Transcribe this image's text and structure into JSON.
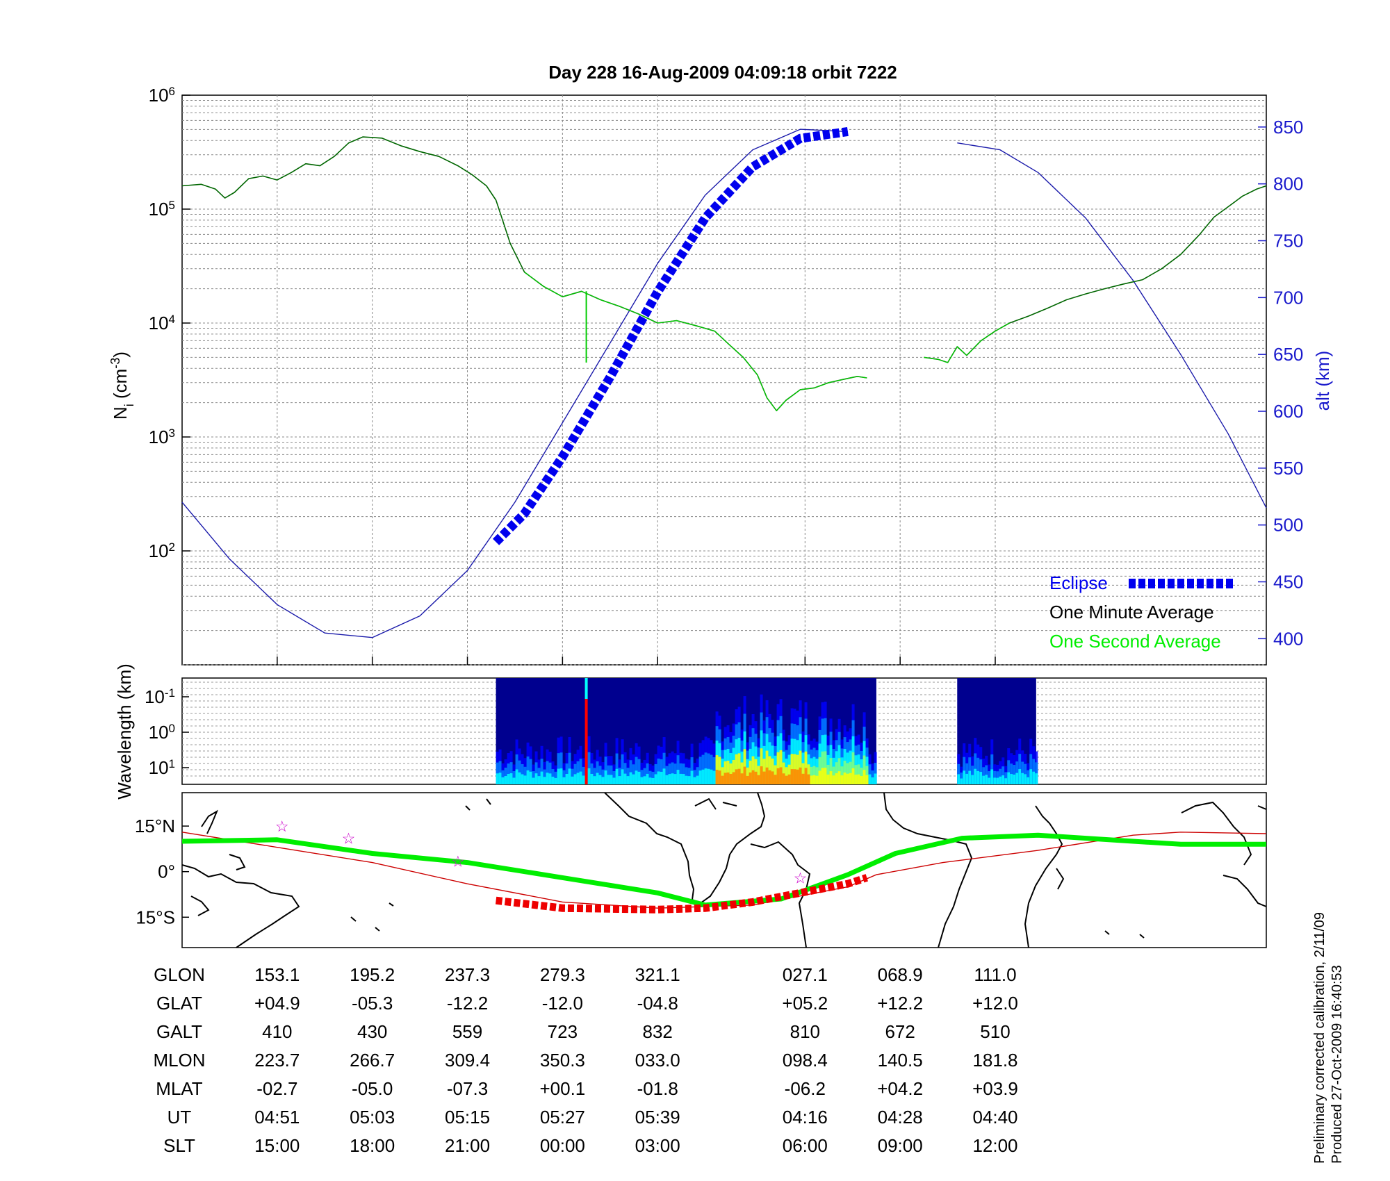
{
  "title": "Day 228  16-Aug-2009 04:09:18   orbit 7222",
  "chart_data": [
    {
      "type": "line",
      "name": "density-panel",
      "ylabel": "N",
      "ylabel_sub": "i",
      "ylabel_unit": " (cm",
      "ylabel_unit_exp": "-3",
      "ylabel_unit_close": ")",
      "yscale": "log",
      "ylim": [
        10,
        1000000
      ],
      "yticks": [
        {
          "base": "10",
          "exp": "6",
          "v": 1000000
        },
        {
          "base": "10",
          "exp": "5",
          "v": 100000
        },
        {
          "base": "10",
          "exp": "4",
          "v": 10000
        },
        {
          "base": "10",
          "exp": "3",
          "v": 1000
        },
        {
          "base": "10",
          "exp": "2",
          "v": 100
        }
      ],
      "y2label": "alt (km)",
      "y2lim": [
        377,
        878
      ],
      "y2ticks": [
        "850",
        "800",
        "750",
        "700",
        "650",
        "600",
        "550",
        "500",
        "450",
        "400"
      ],
      "y2tick_values": [
        850,
        800,
        750,
        700,
        650,
        600,
        550,
        500,
        450,
        400
      ],
      "x_index_range": [
        0,
        8.62
      ],
      "grid": true,
      "legend_position": "bottom-right",
      "legend": [
        {
          "label": "Eclipse",
          "color": "#0000ee",
          "style": "thick-dashed"
        },
        {
          "label": "One Minute Average",
          "color": "#000000",
          "style": "text"
        },
        {
          "label": "One Second Average",
          "color": "#00ee00",
          "style": "text"
        }
      ],
      "series": [
        {
          "name": "One Minute Average",
          "color": "#006600",
          "axis": "left",
          "segments": [
            [
              [
                0,
                160000
              ],
              [
                0.2,
                165000
              ],
              [
                0.35,
                150000
              ],
              [
                0.45,
                125000
              ],
              [
                0.55,
                140000
              ],
              [
                0.7,
                185000
              ],
              [
                0.85,
                195000
              ],
              [
                1.0,
                180000
              ],
              [
                1.15,
                210000
              ],
              [
                1.3,
                250000
              ],
              [
                1.45,
                240000
              ],
              [
                1.6,
                290000
              ],
              [
                1.75,
                380000
              ],
              [
                1.9,
                430000
              ],
              [
                2.1,
                420000
              ],
              [
                2.3,
                360000
              ],
              [
                2.5,
                320000
              ],
              [
                2.7,
                290000
              ],
              [
                2.9,
                240000
              ],
              [
                3.05,
                200000
              ],
              [
                3.2,
                160000
              ],
              [
                3.3,
                120000
              ],
              [
                3.35,
                90000
              ],
              [
                3.45,
                50000
              ],
              [
                3.6,
                28000
              ],
              [
                3.8,
                21000
              ],
              [
                4.0,
                17000
              ],
              [
                4.2,
                19000
              ],
              [
                4.4,
                16000
              ],
              [
                4.6,
                14000
              ],
              [
                4.8,
                12000
              ],
              [
                5.0,
                10000
              ],
              [
                5.2,
                10500
              ],
              [
                5.4,
                9500
              ],
              [
                5.6,
                8500
              ],
              [
                5.75,
                6500
              ],
              [
                5.9,
                5000
              ],
              [
                6.05,
                3500
              ],
              [
                6.15,
                2200
              ],
              [
                6.25,
                1700
              ],
              [
                6.35,
                2100
              ],
              [
                6.5,
                2600
              ],
              [
                6.65,
                2700
              ],
              [
                6.8,
                3000
              ],
              [
                6.95,
                3200
              ],
              [
                7.1,
                3400
              ],
              [
                7.2,
                3300
              ]
            ],
            [
              [
                7.8,
                5000
              ],
              [
                7.95,
                4800
              ],
              [
                8.05,
                4500
              ],
              [
                8.15,
                6200
              ],
              [
                8.25,
                5200
              ],
              [
                8.4,
                7000
              ],
              [
                8.55,
                8500
              ],
              [
                8.7,
                10000
              ],
              [
                8.9,
                11500
              ],
              [
                9.1,
                13500
              ],
              [
                9.3,
                16000
              ],
              [
                9.5,
                18000
              ],
              [
                9.7,
                20000
              ],
              [
                9.9,
                22000
              ],
              [
                10.1,
                24000
              ],
              [
                10.3,
                30000
              ],
              [
                10.5,
                40000
              ],
              [
                10.7,
                60000
              ],
              [
                10.85,
                85000
              ],
              [
                11.0,
                105000
              ],
              [
                11.15,
                130000
              ],
              [
                11.3,
                150000
              ],
              [
                11.4,
                160000
              ]
            ]
          ]
        },
        {
          "name": "One Second Average",
          "color": "#00cc00",
          "axis": "left",
          "segments": [
            [
              [
                3.6,
                28000
              ],
              [
                3.8,
                21000
              ],
              [
                4.0,
                17000
              ],
              [
                4.2,
                19000
              ],
              [
                4.4,
                16000
              ],
              [
                4.6,
                14000
              ],
              [
                4.8,
                12000
              ],
              [
                5.0,
                10000
              ],
              [
                5.2,
                10500
              ],
              [
                5.4,
                9500
              ],
              [
                5.6,
                8500
              ],
              [
                5.75,
                6500
              ],
              [
                5.9,
                5000
              ],
              [
                6.05,
                3500
              ],
              [
                6.15,
                2200
              ],
              [
                6.25,
                1700
              ],
              [
                6.35,
                2100
              ],
              [
                6.5,
                2600
              ],
              [
                6.65,
                2700
              ],
              [
                6.8,
                3000
              ],
              [
                6.95,
                3200
              ],
              [
                7.1,
                3400
              ],
              [
                7.2,
                3300
              ]
            ],
            [
              [
                7.8,
                5000
              ],
              [
                7.95,
                4800
              ],
              [
                8.05,
                4500
              ],
              [
                8.15,
                6200
              ],
              [
                8.25,
                5200
              ],
              [
                8.4,
                7000
              ],
              [
                8.55,
                8500
              ],
              [
                8.7,
                10000
              ]
            ]
          ],
          "spike": {
            "x": 4.25,
            "from": 19000,
            "to": 4500
          }
        },
        {
          "name": "altitude",
          "color": "#1a1aaa",
          "axis": "right",
          "segments": [
            [
              [
                0,
                520
              ],
              [
                0.5,
                470
              ],
              [
                1.0,
                430
              ],
              [
                1.5,
                405
              ],
              [
                2.0,
                401
              ],
              [
                2.5,
                420
              ],
              [
                3.0,
                460
              ],
              [
                3.5,
                520
              ],
              [
                4.0,
                590
              ],
              [
                4.5,
                660
              ],
              [
                5.0,
                730
              ],
              [
                5.5,
                790
              ],
              [
                6.0,
                830
              ],
              [
                6.5,
                848
              ],
              [
                7.0,
                846
              ]
            ],
            [
              [
                8.15,
                836
              ],
              [
                8.6,
                830
              ],
              [
                9.0,
                810
              ],
              [
                9.5,
                770
              ],
              [
                10.0,
                715
              ],
              [
                10.5,
                650
              ],
              [
                11.0,
                580
              ],
              [
                11.4,
                515
              ]
            ]
          ]
        },
        {
          "name": "Eclipse",
          "color": "#0000ee",
          "axis": "right",
          "segments": [
            [
              [
                3.3,
                485
              ],
              [
                3.6,
                510
              ],
              [
                4.0,
                560
              ],
              [
                4.5,
                630
              ],
              [
                5.0,
                705
              ],
              [
                5.5,
                770
              ],
              [
                6.0,
                815
              ],
              [
                6.5,
                840
              ],
              [
                7.0,
                846
              ]
            ]
          ]
        }
      ],
      "x_index_note": ""
    },
    {
      "type": "heatmap",
      "name": "spectrogram-panel",
      "ylabel": "Wavelength (km)",
      "yscale": "log",
      "yticks": [
        {
          "base": "10",
          "exp": "-1"
        },
        {
          "base": "10",
          "exp": "0"
        },
        {
          "base": "10",
          "exp": "1"
        }
      ],
      "data_blocks": [
        [
          3.3,
          7.3
        ],
        [
          8.15,
          8.98
        ]
      ],
      "colormap": [
        "#00008f",
        "#0000ff",
        "#0080ff",
        "#00ffff",
        "#80ff80",
        "#ffff00",
        "#ff8000",
        "#ff0000"
      ]
    },
    {
      "type": "line",
      "name": "map-panel",
      "yticks": [
        "15°N",
        "0°",
        "15°S"
      ],
      "ylim": [
        -25,
        26
      ],
      "series": [
        {
          "name": "green track",
          "color": "#00ee00",
          "points": [
            [
              0,
              10
            ],
            [
              1,
              10.5
            ],
            [
              2,
              6
            ],
            [
              3,
              3
            ],
            [
              4,
              -2
            ],
            [
              5,
              -7
            ],
            [
              5.5,
              -11
            ],
            [
              6.3,
              -9
            ],
            [
              7.0,
              -1
            ],
            [
              7.5,
              6
            ],
            [
              8.2,
              11
            ],
            [
              9.0,
              12
            ],
            [
              10.0,
              10
            ],
            [
              10.5,
              9
            ],
            [
              11.4,
              9
            ]
          ]
        },
        {
          "name": "red track",
          "color": "#cc0000",
          "points": [
            [
              0,
              13
            ],
            [
              1.0,
              8
            ],
            [
              2.0,
              3
            ],
            [
              3.0,
              -4
            ],
            [
              4.0,
              -10
            ],
            [
              5.0,
              -12
            ],
            [
              6.0,
              -11
            ],
            [
              7.0,
              -5
            ],
            [
              7.3,
              -1
            ],
            [
              8.0,
              3
            ],
            [
              9.0,
              7
            ],
            [
              10.0,
              12
            ],
            [
              10.5,
              13
            ],
            [
              11.4,
              12.5
            ]
          ]
        },
        {
          "name": "eclipse track",
          "color": "#ee0000",
          "points": [
            [
              3.3,
              -9.5
            ],
            [
              4.0,
              -12
            ],
            [
              5.0,
              -12.5
            ],
            [
              5.5,
              -12
            ],
            [
              6.0,
              -10
            ],
            [
              6.5,
              -7
            ],
            [
              7.0,
              -4
            ],
            [
              7.2,
              -2
            ]
          ]
        }
      ],
      "stars": [
        [
          1.05,
          15
        ],
        [
          1.75,
          11
        ],
        [
          2.9,
          3.5
        ],
        [
          6.5,
          -2
        ]
      ]
    }
  ],
  "table": {
    "columns": [
      {
        "label": "GLON",
        "values": [
          "153.1",
          "195.2",
          "237.3",
          "279.3",
          "321.1",
          "027.1",
          "068.9",
          "111.0"
        ]
      },
      {
        "label": "GLAT",
        "values": [
          "+04.9",
          "-05.3",
          "-12.2",
          "-12.0",
          "-04.8",
          "+05.2",
          "+12.2",
          "+12.0"
        ]
      },
      {
        "label": "GALT",
        "values": [
          "410",
          "430",
          "559",
          "723",
          "832",
          "810",
          "672",
          "510"
        ]
      },
      {
        "label": "MLON",
        "values": [
          "223.7",
          "266.7",
          "309.4",
          "350.3",
          "033.0",
          "098.4",
          "140.5",
          "181.8"
        ]
      },
      {
        "label": "MLAT",
        "values": [
          "-02.7",
          "-05.0",
          "-07.3",
          "+00.1",
          "-01.8",
          "-06.2",
          "+04.2",
          "+03.9"
        ]
      },
      {
        "label": "UT",
        "values": [
          "04:51",
          "05:03",
          "05:15",
          "05:27",
          "05:39",
          "04:16",
          "04:28",
          "04:40"
        ]
      },
      {
        "label": "SLT",
        "values": [
          "15:00",
          "18:00",
          "21:00",
          "00:00",
          "03:00",
          "06:00",
          "09:00",
          "12:00"
        ]
      }
    ]
  },
  "footnote": {
    "line1": "Preliminary corrected calibration, 2/11/09",
    "line2": "Produced 27-Oct-2009 16:40:53"
  }
}
